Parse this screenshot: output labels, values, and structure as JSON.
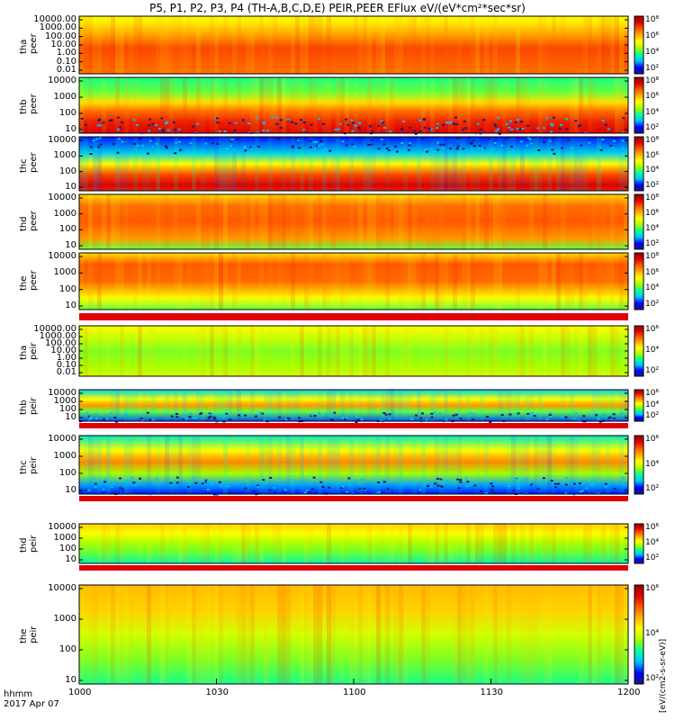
{
  "title": "P5, P1, P2, P3, P4 (TH-A,B,C,D,E) PEIR,PEER EFlux eV/(eV*cm²*sec*sr)",
  "footer": {
    "line1": "hhmm",
    "line2": "2017 Apr 07"
  },
  "colorbar_unit": "[eV/(cm2-s-sr-eV)]",
  "colors": {
    "spectrum_scale": [
      "#1a1a80",
      "#0000ff",
      "#00c0ff",
      "#00ffa0",
      "#a0ff00",
      "#ffff00",
      "#ffb000",
      "#ff5a00",
      "#e00000",
      "#900000"
    ]
  },
  "chart_data": [
    {
      "type": "heatmap",
      "panel": "tha peer",
      "ylabel": [
        "tha",
        "peer"
      ],
      "y_scale": "log",
      "yticks": [
        "10000.00",
        "1000.00",
        "100.00",
        "10.00",
        "1.00",
        "0.10",
        "0.01"
      ],
      "colorbar_ticks": [
        "10⁸",
        "10⁶",
        "10⁴",
        "10²"
      ]
    },
    {
      "type": "heatmap",
      "panel": "thb peer",
      "ylabel": [
        "thb",
        "peer"
      ],
      "y_scale": "log",
      "yticks": [
        "10000",
        "1000",
        "100",
        "10"
      ],
      "colorbar_ticks": [
        "10⁸",
        "10⁶",
        "10⁴",
        "10²"
      ]
    },
    {
      "type": "heatmap",
      "panel": "thc peer",
      "ylabel": [
        "thc",
        "peer"
      ],
      "y_scale": "log",
      "yticks": [
        "10000",
        "1000",
        "100",
        "10"
      ],
      "colorbar_ticks": [
        "10⁸",
        "10⁶",
        "10⁴",
        "10²"
      ]
    },
    {
      "type": "heatmap",
      "panel": "thd peer",
      "ylabel": [
        "thd",
        "peer"
      ],
      "y_scale": "log",
      "yticks": [
        "10000",
        "1000",
        "100",
        "10"
      ],
      "colorbar_ticks": [
        "10⁸",
        "10⁶",
        "10⁴",
        "10²"
      ]
    },
    {
      "type": "heatmap",
      "panel": "the peer",
      "ylabel": [
        "the",
        "peer"
      ],
      "y_scale": "log",
      "yticks": [
        "10000",
        "1000",
        "100",
        "10"
      ],
      "colorbar_ticks": [
        "10⁸",
        "10⁶",
        "10⁴",
        "10²"
      ]
    },
    {
      "type": "heatmap",
      "panel": "tha peir",
      "ylabel": [
        "tha",
        "peir"
      ],
      "y_scale": "log",
      "yticks": [
        "10000.00",
        "1000.00",
        "100.00",
        "10.00",
        "1.00",
        "0.10",
        "0.01"
      ],
      "colorbar_ticks": [
        "10⁶",
        "10⁴",
        "10²"
      ]
    },
    {
      "type": "heatmap",
      "panel": "thb peir",
      "ylabel": [
        "thb",
        "peir"
      ],
      "y_scale": "log",
      "yticks": [
        "10000",
        "1000",
        "100",
        "10"
      ],
      "colorbar_ticks": [
        "10⁶",
        "10⁴",
        "10²"
      ]
    },
    {
      "type": "heatmap",
      "panel": "thc peir",
      "ylabel": [
        "thc",
        "peir"
      ],
      "y_scale": "log",
      "yticks": [
        "10000",
        "1000",
        "100",
        "10"
      ],
      "colorbar_ticks": [
        "10⁶",
        "10⁴",
        "10²"
      ]
    },
    {
      "type": "heatmap",
      "panel": "thd peir",
      "ylabel": [
        "thd",
        "peir"
      ],
      "y_scale": "log",
      "yticks": [
        "10000",
        "1000",
        "100",
        "10"
      ],
      "colorbar_ticks": [
        "10⁶",
        "10⁴",
        "10²"
      ]
    },
    {
      "type": "heatmap",
      "panel": "the peir",
      "ylabel": [
        "the",
        "peir"
      ],
      "y_scale": "log",
      "yticks": [
        "10000",
        "1000",
        "100",
        "10"
      ],
      "colorbar_ticks": [
        "10⁶",
        "10⁴",
        "10²"
      ]
    }
  ],
  "x_axis": {
    "ticks": [
      "1000",
      "1030",
      "1100",
      "1130",
      "1200"
    ]
  }
}
